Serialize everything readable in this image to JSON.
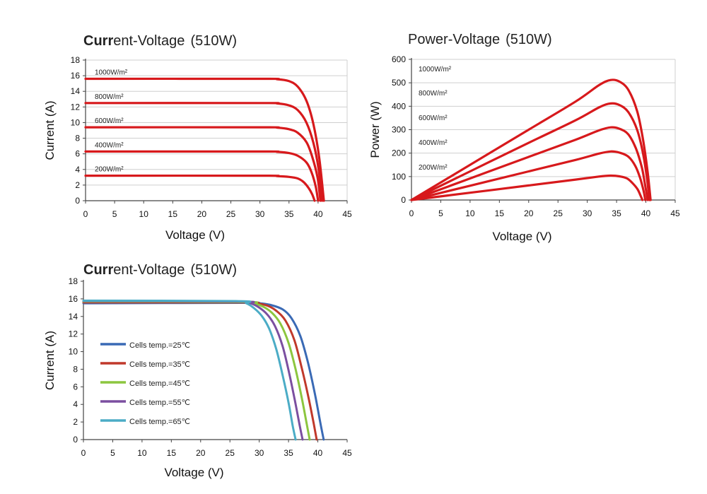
{
  "chart_data": [
    {
      "type": "line",
      "title": "Current-Voltage",
      "title_suffix": "(510W)",
      "xlabel": "Voltage (V)",
      "ylabel": "Current (A)",
      "xlim": [
        0,
        45
      ],
      "ylim": [
        0,
        18
      ],
      "x_ticks": [
        0,
        5,
        10,
        15,
        20,
        25,
        30,
        35,
        40,
        45
      ],
      "y_ticks": [
        0,
        2,
        4,
        6,
        8,
        10,
        12,
        14,
        16,
        18
      ],
      "grid": "horizontal",
      "line_color": "#d7191c",
      "series": [
        {
          "name": "1000W/m²",
          "points": [
            [
              0,
              15.6
            ],
            [
              30,
              15.6
            ],
            [
              33,
              15.55
            ],
            [
              35,
              15.3
            ],
            [
              36.5,
              14.6
            ],
            [
              38,
              12.8
            ],
            [
              39.2,
              9.8
            ],
            [
              40.2,
              5.5
            ],
            [
              41,
              0
            ]
          ]
        },
        {
          "name": "800W/m²",
          "points": [
            [
              0,
              12.5
            ],
            [
              30,
              12.5
            ],
            [
              33,
              12.45
            ],
            [
              35,
              12.2
            ],
            [
              36.5,
              11.6
            ],
            [
              38,
              10.0
            ],
            [
              39.2,
              7.4
            ],
            [
              40.1,
              4.0
            ],
            [
              40.7,
              0
            ]
          ]
        },
        {
          "name": "600W/m²",
          "points": [
            [
              0,
              9.4
            ],
            [
              30,
              9.4
            ],
            [
              33,
              9.35
            ],
            [
              35,
              9.15
            ],
            [
              36.5,
              8.7
            ],
            [
              38,
              7.5
            ],
            [
              39,
              5.6
            ],
            [
              39.9,
              3.0
            ],
            [
              40.4,
              0
            ]
          ]
        },
        {
          "name": "400W/m²",
          "points": [
            [
              0,
              6.3
            ],
            [
              30,
              6.3
            ],
            [
              33,
              6.25
            ],
            [
              35,
              6.1
            ],
            [
              36.5,
              5.75
            ],
            [
              38,
              4.9
            ],
            [
              38.9,
              3.6
            ],
            [
              39.6,
              1.8
            ],
            [
              40,
              0
            ]
          ]
        },
        {
          "name": "200W/m²",
          "points": [
            [
              0,
              3.2
            ],
            [
              30,
              3.2
            ],
            [
              33,
              3.15
            ],
            [
              35,
              3.05
            ],
            [
              36.5,
              2.85
            ],
            [
              37.5,
              2.4
            ],
            [
              38.4,
              1.6
            ],
            [
              39,
              0.8
            ],
            [
              39.4,
              0
            ]
          ]
        }
      ]
    },
    {
      "type": "line",
      "title": "Power-Voltage",
      "title_suffix": "(510W)",
      "xlabel": "Voltage (V)",
      "ylabel": "Power (W)",
      "xlim": [
        0,
        45
      ],
      "ylim": [
        0,
        600
      ],
      "x_ticks": [
        0,
        5,
        10,
        15,
        20,
        25,
        30,
        35,
        40,
        45
      ],
      "y_ticks": [
        0,
        100,
        200,
        300,
        400,
        500,
        600
      ],
      "grid": "horizontal",
      "line_color": "#d7191c",
      "series": [
        {
          "name": "1000W/m²",
          "points": [
            [
              0,
              0
            ],
            [
              10,
              150
            ],
            [
              20,
              300
            ],
            [
              28,
              420
            ],
            [
              32,
              490
            ],
            [
              34,
              512
            ],
            [
              35.5,
              505
            ],
            [
              37,
              470
            ],
            [
              38.5,
              380
            ],
            [
              39.5,
              260
            ],
            [
              40.3,
              120
            ],
            [
              40.8,
              0
            ]
          ]
        },
        {
          "name": "800W/m²",
          "points": [
            [
              0,
              0
            ],
            [
              10,
              122
            ],
            [
              20,
              244
            ],
            [
              28,
              340
            ],
            [
              32,
              395
            ],
            [
              34,
              412
            ],
            [
              35.5,
              405
            ],
            [
              37,
              375
            ],
            [
              38.5,
              300
            ],
            [
              39.5,
              200
            ],
            [
              40.2,
              90
            ],
            [
              40.6,
              0
            ]
          ]
        },
        {
          "name": "600W/m²",
          "points": [
            [
              0,
              0
            ],
            [
              10,
              92
            ],
            [
              20,
              184
            ],
            [
              28,
              257
            ],
            [
              32,
              297
            ],
            [
              34,
              310
            ],
            [
              35.5,
              304
            ],
            [
              37,
              280
            ],
            [
              38.3,
              220
            ],
            [
              39.3,
              140
            ],
            [
              39.9,
              60
            ],
            [
              40.3,
              0
            ]
          ]
        },
        {
          "name": "400W/m²",
          "points": [
            [
              0,
              0
            ],
            [
              10,
              61
            ],
            [
              20,
              122
            ],
            [
              28,
              171
            ],
            [
              32,
              198
            ],
            [
              34,
              207
            ],
            [
              35.5,
              202
            ],
            [
              37,
              185
            ],
            [
              38.2,
              145
            ],
            [
              39,
              95
            ],
            [
              39.6,
              40
            ],
            [
              39.9,
              0
            ]
          ]
        },
        {
          "name": "200W/m²",
          "points": [
            [
              0,
              0
            ],
            [
              10,
              31
            ],
            [
              20,
              62
            ],
            [
              28,
              87
            ],
            [
              32,
              100
            ],
            [
              34,
              104
            ],
            [
              35.5,
              101
            ],
            [
              36.8,
              92
            ],
            [
              37.8,
              70
            ],
            [
              38.6,
              45
            ],
            [
              39.1,
              18
            ],
            [
              39.4,
              0
            ]
          ]
        }
      ]
    },
    {
      "type": "line",
      "title": "Current-Voltage",
      "title_suffix": "(510W)",
      "xlabel": "Voltage (V)",
      "ylabel": "Current (A)",
      "xlim": [
        0,
        45
      ],
      "ylim": [
        0,
        18
      ],
      "x_ticks": [
        0,
        5,
        10,
        15,
        20,
        25,
        30,
        35,
        40,
        45
      ],
      "y_ticks": [
        0,
        2,
        4,
        6,
        8,
        10,
        12,
        14,
        16,
        18
      ],
      "grid": "none",
      "legend_position": "left",
      "series": [
        {
          "name": "Cells temp.=25℃",
          "color": "#3a6ab5",
          "points": [
            [
              0,
              15.5
            ],
            [
              27,
              15.55
            ],
            [
              30,
              15.5
            ],
            [
              32,
              15.3
            ],
            [
              34,
              14.8
            ],
            [
              35.5,
              13.8
            ],
            [
              37,
              11.8
            ],
            [
              38.3,
              8.8
            ],
            [
              39.5,
              5.2
            ],
            [
              40.4,
              2.0
            ],
            [
              41,
              0
            ]
          ]
        },
        {
          "name": "Cells temp.=35℃",
          "color": "#c0392b",
          "points": [
            [
              0,
              15.6
            ],
            [
              27,
              15.6
            ],
            [
              29.5,
              15.5
            ],
            [
              31.5,
              15.2
            ],
            [
              33,
              14.6
            ],
            [
              34.5,
              13.5
            ],
            [
              36,
              11.3
            ],
            [
              37.2,
              8.3
            ],
            [
              38.4,
              4.8
            ],
            [
              39.3,
              1.8
            ],
            [
              39.8,
              0
            ]
          ]
        },
        {
          "name": "Cells temp.=45℃",
          "color": "#8cc63f",
          "points": [
            [
              0,
              15.7
            ],
            [
              27,
              15.65
            ],
            [
              29,
              15.5
            ],
            [
              30.7,
              15.1
            ],
            [
              32.2,
              14.4
            ],
            [
              33.6,
              13.2
            ],
            [
              35,
              11.0
            ],
            [
              36.2,
              8.0
            ],
            [
              37.3,
              4.6
            ],
            [
              38.1,
              1.8
            ],
            [
              38.6,
              0
            ]
          ]
        },
        {
          "name": "Cells temp.=55℃",
          "color": "#7b4fa0",
          "points": [
            [
              0,
              15.75
            ],
            [
              26.5,
              15.7
            ],
            [
              28.5,
              15.5
            ],
            [
              30,
              15.0
            ],
            [
              31.4,
              14.2
            ],
            [
              32.7,
              12.9
            ],
            [
              34,
              10.6
            ],
            [
              35.1,
              7.6
            ],
            [
              36.1,
              4.4
            ],
            [
              36.9,
              1.6
            ],
            [
              37.4,
              0
            ]
          ]
        },
        {
          "name": "Cells temp.=65℃",
          "color": "#4bacc6",
          "points": [
            [
              0,
              15.8
            ],
            [
              26,
              15.75
            ],
            [
              27.8,
              15.5
            ],
            [
              29.2,
              14.9
            ],
            [
              30.5,
              14.0
            ],
            [
              31.7,
              12.6
            ],
            [
              32.9,
              10.3
            ],
            [
              34,
              7.3
            ],
            [
              35,
              4.2
            ],
            [
              35.7,
              1.6
            ],
            [
              36.2,
              0
            ]
          ]
        }
      ]
    }
  ]
}
